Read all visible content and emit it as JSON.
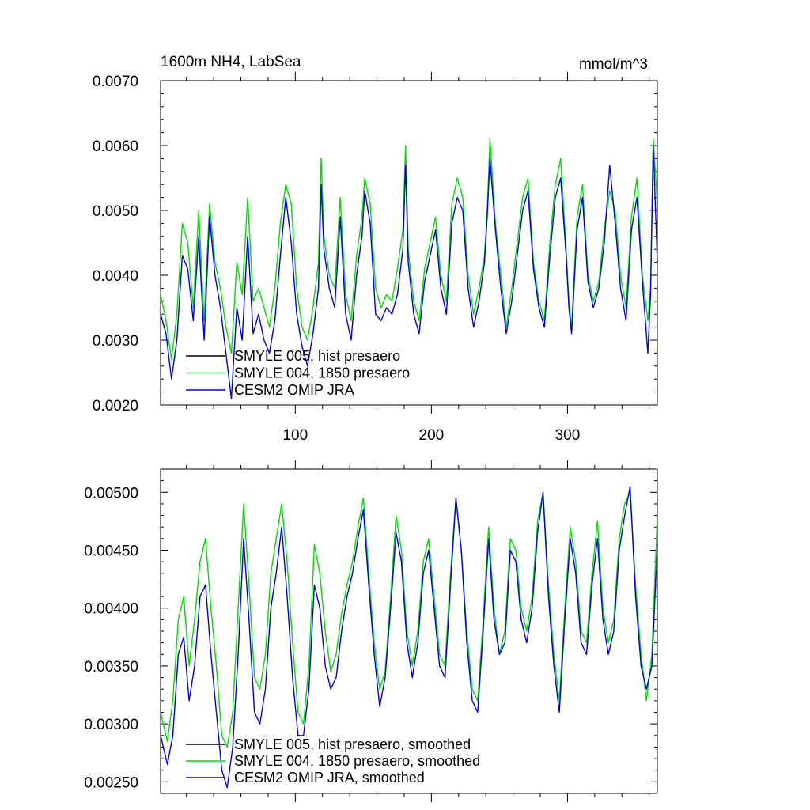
{
  "chart_data": [
    {
      "type": "line",
      "title": "1600m NH4, LabSea",
      "units": "mmol/m^3",
      "xlim": [
        1,
        366
      ],
      "ylim": [
        0.002,
        0.007
      ],
      "x_ticks": [
        100,
        200,
        300
      ],
      "x_tick_labels": [
        "100",
        "200",
        "300"
      ],
      "y_ticks": [
        0.002,
        0.003,
        0.004,
        0.005,
        0.006,
        0.007
      ],
      "y_tick_labels": [
        "0.0020",
        "0.0030",
        "0.0040",
        "0.0050",
        "0.0060",
        "0.0070"
      ],
      "legend_position": "bottom-left",
      "series": [
        {
          "name": "SMYLE 005, hist presaero",
          "color": "#000000",
          "x": [],
          "values": []
        },
        {
          "name": "SMYLE 004, 1850 presaero",
          "color": "#00dd00",
          "x": [
            1,
            5,
            9,
            13,
            17,
            21,
            25,
            29,
            33,
            37,
            41,
            45,
            49,
            53,
            57,
            61,
            65,
            69,
            73,
            77,
            81,
            85,
            89,
            93,
            97,
            101,
            105,
            109,
            113,
            117,
            119,
            121,
            125,
            129,
            133,
            137,
            141,
            145,
            149,
            151,
            155,
            159,
            163,
            167,
            171,
            175,
            179,
            181,
            183,
            187,
            191,
            195,
            199,
            203,
            207,
            211,
            215,
            219,
            223,
            227,
            231,
            235,
            239,
            241,
            243,
            247,
            251,
            255,
            259,
            263,
            267,
            271,
            275,
            279,
            283,
            287,
            291,
            295,
            299,
            301,
            303,
            307,
            311,
            315,
            319,
            323,
            327,
            331,
            335,
            339,
            343,
            347,
            351,
            355,
            359,
            361,
            363,
            366
          ],
          "values": [
            0.0037,
            0.0033,
            0.0027,
            0.0034,
            0.0048,
            0.0045,
            0.0035,
            0.005,
            0.0033,
            0.0051,
            0.0042,
            0.0038,
            0.0032,
            0.0028,
            0.0042,
            0.0037,
            0.0052,
            0.0036,
            0.0038,
            0.0035,
            0.0032,
            0.0038,
            0.0048,
            0.0054,
            0.0051,
            0.0038,
            0.0032,
            0.003,
            0.0035,
            0.0042,
            0.0058,
            0.0046,
            0.004,
            0.0038,
            0.0052,
            0.0037,
            0.0033,
            0.0043,
            0.0049,
            0.0055,
            0.0051,
            0.0038,
            0.0035,
            0.0037,
            0.0036,
            0.0041,
            0.0047,
            0.006,
            0.0044,
            0.0036,
            0.0033,
            0.0041,
            0.0045,
            0.0049,
            0.004,
            0.0036,
            0.0051,
            0.0055,
            0.0052,
            0.004,
            0.0034,
            0.0038,
            0.0043,
            0.005,
            0.0061,
            0.0048,
            0.004,
            0.0032,
            0.0038,
            0.0045,
            0.0052,
            0.0055,
            0.0042,
            0.0036,
            0.0033,
            0.0045,
            0.0054,
            0.0058,
            0.0044,
            0.0036,
            0.0032,
            0.0049,
            0.0054,
            0.004,
            0.0036,
            0.0039,
            0.0047,
            0.0053,
            0.005,
            0.004,
            0.0035,
            0.0049,
            0.0055,
            0.004,
            0.0033,
            0.0038,
            0.0061,
            0.0051
          ]
        },
        {
          "name": "CESM2 OMIP JRA",
          "color": "#0000dd",
          "x": [
            1,
            5,
            9,
            13,
            17,
            21,
            25,
            29,
            33,
            37,
            41,
            45,
            49,
            53,
            57,
            61,
            65,
            69,
            73,
            77,
            81,
            85,
            89,
            93,
            97,
            101,
            105,
            109,
            113,
            117,
            119,
            121,
            125,
            129,
            133,
            137,
            141,
            145,
            149,
            151,
            155,
            159,
            163,
            167,
            171,
            175,
            179,
            181,
            183,
            187,
            191,
            195,
            199,
            203,
            207,
            211,
            215,
            219,
            223,
            227,
            231,
            235,
            239,
            241,
            243,
            247,
            251,
            255,
            259,
            263,
            267,
            271,
            275,
            279,
            283,
            287,
            291,
            295,
            299,
            301,
            303,
            307,
            311,
            315,
            319,
            323,
            327,
            331,
            335,
            339,
            343,
            347,
            351,
            355,
            359,
            361,
            363,
            366
          ],
          "values": [
            0.0034,
            0.0031,
            0.0024,
            0.003,
            0.0043,
            0.0041,
            0.0033,
            0.0046,
            0.003,
            0.0049,
            0.004,
            0.0035,
            0.0028,
            0.0021,
            0.0035,
            0.003,
            0.0046,
            0.0031,
            0.0034,
            0.003,
            0.0028,
            0.0033,
            0.0043,
            0.0052,
            0.0045,
            0.0034,
            0.0029,
            0.0026,
            0.0031,
            0.0038,
            0.0054,
            0.0044,
            0.0038,
            0.0035,
            0.0049,
            0.0034,
            0.003,
            0.004,
            0.0046,
            0.0053,
            0.0048,
            0.0034,
            0.0033,
            0.0035,
            0.0034,
            0.0037,
            0.0044,
            0.0057,
            0.0042,
            0.0034,
            0.0031,
            0.0039,
            0.0043,
            0.0047,
            0.0038,
            0.0034,
            0.0048,
            0.0052,
            0.005,
            0.0038,
            0.0032,
            0.0036,
            0.0042,
            0.0049,
            0.0058,
            0.0047,
            0.0038,
            0.0031,
            0.0036,
            0.0043,
            0.005,
            0.0053,
            0.0041,
            0.0035,
            0.0032,
            0.0043,
            0.0052,
            0.0055,
            0.0043,
            0.0035,
            0.0031,
            0.0047,
            0.0052,
            0.0039,
            0.0035,
            0.0038,
            0.0045,
            0.0057,
            0.0048,
            0.0038,
            0.0033,
            0.0047,
            0.0052,
            0.0039,
            0.0028,
            0.0037,
            0.006,
            0.0042
          ]
        }
      ],
      "legend": [
        "SMYLE 005, hist presaero",
        "SMYLE 004, 1850 presaero",
        "CESM2 OMIP JRA"
      ]
    },
    {
      "type": "line",
      "title": "",
      "xlim": [
        1,
        366
      ],
      "ylim": [
        0.0024,
        0.0052
      ],
      "x_ticks": [
        100,
        200,
        300
      ],
      "x_tick_labels": [],
      "y_ticks": [
        0.0025,
        0.003,
        0.0035,
        0.004,
        0.0045,
        0.005
      ],
      "y_tick_labels": [
        "0.00250",
        "0.00300",
        "0.00350",
        "0.00400",
        "0.00450",
        "0.00500"
      ],
      "legend_position": "bottom-left",
      "series": [
        {
          "name": "SMYLE 005, hist presaero, smoothed",
          "color": "#000000",
          "x": [],
          "values": []
        },
        {
          "name": "SMYLE 004, 1850 presaero, smoothed",
          "color": "#00dd00",
          "x": [
            1,
            6,
            10,
            14,
            18,
            22,
            26,
            30,
            34,
            38,
            42,
            46,
            50,
            54,
            58,
            62,
            66,
            70,
            74,
            78,
            82,
            86,
            90,
            94,
            98,
            102,
            106,
            110,
            114,
            118,
            122,
            126,
            130,
            134,
            138,
            142,
            146,
            150,
            154,
            158,
            162,
            166,
            170,
            174,
            178,
            182,
            186,
            190,
            194,
            198,
            202,
            206,
            210,
            214,
            218,
            222,
            226,
            230,
            234,
            238,
            242,
            246,
            250,
            254,
            258,
            262,
            266,
            270,
            274,
            278,
            282,
            286,
            290,
            294,
            298,
            302,
            306,
            310,
            314,
            318,
            322,
            326,
            330,
            334,
            338,
            342,
            346,
            350,
            354,
            358,
            362,
            366
          ],
          "values": [
            0.0031,
            0.00285,
            0.0032,
            0.0039,
            0.0041,
            0.0035,
            0.0039,
            0.0044,
            0.0046,
            0.004,
            0.0035,
            0.0029,
            0.0028,
            0.0031,
            0.004,
            0.0049,
            0.0042,
            0.0034,
            0.0033,
            0.0036,
            0.0043,
            0.0046,
            0.0049,
            0.0044,
            0.0037,
            0.0031,
            0.003,
            0.0035,
            0.00455,
            0.0043,
            0.0038,
            0.00345,
            0.0036,
            0.00395,
            0.0042,
            0.0044,
            0.0047,
            0.00495,
            0.0043,
            0.0037,
            0.0033,
            0.00345,
            0.0041,
            0.0048,
            0.0045,
            0.0038,
            0.0035,
            0.0038,
            0.0044,
            0.0046,
            0.0041,
            0.0036,
            0.0035,
            0.0043,
            0.00495,
            0.0045,
            0.0038,
            0.0033,
            0.0032,
            0.0039,
            0.0047,
            0.004,
            0.0036,
            0.0038,
            0.0046,
            0.0045,
            0.004,
            0.0038,
            0.0041,
            0.00475,
            0.005,
            0.0042,
            0.0036,
            0.0032,
            0.004,
            0.0047,
            0.0044,
            0.0038,
            0.0037,
            0.0043,
            0.00475,
            0.004,
            0.0037,
            0.0039,
            0.0046,
            0.0049,
            0.005,
            0.0042,
            0.0036,
            0.0032,
            0.0036,
            0.0048
          ]
        },
        {
          "name": "CESM2 OMIP JRA, smoothed",
          "color": "#0000dd",
          "x": [
            1,
            6,
            10,
            14,
            18,
            22,
            26,
            30,
            34,
            38,
            42,
            46,
            50,
            54,
            58,
            62,
            66,
            70,
            74,
            78,
            82,
            86,
            90,
            94,
            98,
            102,
            106,
            110,
            114,
            118,
            122,
            126,
            130,
            134,
            138,
            142,
            146,
            150,
            154,
            158,
            162,
            166,
            170,
            174,
            178,
            182,
            186,
            190,
            194,
            198,
            202,
            206,
            210,
            214,
            218,
            222,
            226,
            230,
            234,
            238,
            242,
            246,
            250,
            254,
            258,
            262,
            266,
            270,
            274,
            278,
            282,
            286,
            290,
            294,
            298,
            302,
            306,
            310,
            314,
            318,
            322,
            326,
            330,
            334,
            338,
            342,
            346,
            350,
            354,
            358,
            362,
            366
          ],
          "values": [
            0.0029,
            0.00265,
            0.0029,
            0.0036,
            0.00375,
            0.0032,
            0.0035,
            0.0041,
            0.0042,
            0.0036,
            0.0031,
            0.0026,
            0.00245,
            0.0028,
            0.0036,
            0.0046,
            0.0039,
            0.0031,
            0.003,
            0.0033,
            0.004,
            0.0043,
            0.0047,
            0.0041,
            0.0034,
            0.0029,
            0.0029,
            0.0033,
            0.0042,
            0.004,
            0.0035,
            0.0033,
            0.0034,
            0.0038,
            0.0041,
            0.0043,
            0.0046,
            0.00485,
            0.0042,
            0.0036,
            0.00315,
            0.0034,
            0.004,
            0.00465,
            0.0044,
            0.0037,
            0.0034,
            0.0037,
            0.0043,
            0.0045,
            0.004,
            0.0035,
            0.0034,
            0.0042,
            0.00495,
            0.0045,
            0.0037,
            0.0032,
            0.0031,
            0.0038,
            0.0046,
            0.0039,
            0.0036,
            0.0037,
            0.0045,
            0.0044,
            0.0039,
            0.0037,
            0.004,
            0.00465,
            0.005,
            0.0041,
            0.0035,
            0.0031,
            0.0039,
            0.0046,
            0.0043,
            0.0037,
            0.0036,
            0.0042,
            0.0046,
            0.0039,
            0.0036,
            0.0038,
            0.0045,
            0.0048,
            0.00505,
            0.0041,
            0.0035,
            0.0033,
            0.0035,
            0.00455
          ]
        }
      ],
      "legend": [
        "SMYLE 005, hist presaero, smoothed",
        "SMYLE 004, 1850 presaero, smoothed",
        "CESM2 OMIP JRA, smoothed"
      ]
    }
  ]
}
